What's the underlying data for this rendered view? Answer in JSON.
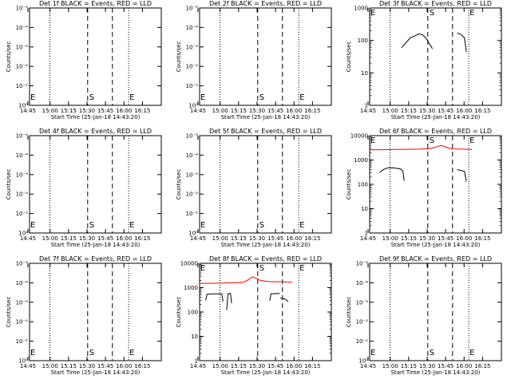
{
  "chart_data": {
    "type": "line",
    "common": {
      "xlabel": "Start Time (25-Jan-18 14:43:20)",
      "ylabel": "Counts/sec",
      "xticks": [
        "14:45",
        "15:00",
        "15:15",
        "15:30",
        "15:45",
        "16:00",
        "16:15"
      ],
      "xtick_min": [
        -1.33,
        16.67,
        31.67,
        46.67,
        61.67,
        76.67,
        91.67
      ],
      "xlim_min": [
        0,
        107
      ],
      "dotted_lines_min": [
        16.5,
        80.5
      ],
      "dashed_lines_min": [
        47.2,
        67.3
      ],
      "flags": [
        "S",
        "E"
      ],
      "series_colors": {
        "Events": "#000000",
        "LLD": "#ff0000"
      }
    },
    "panels": [
      {
        "title": "Det 1f BLACK = Events, RED = LLD",
        "yscale": "exp",
        "yticks": [
          "10⁰",
          "10⁻¹",
          "10⁻²",
          "10⁻³",
          "10⁻⁴",
          "10⁻⁵"
        ],
        "series": []
      },
      {
        "title": "Det 2f BLACK = Events, RED = LLD",
        "yscale": "exp",
        "yticks": [
          "10⁰",
          "10⁻¹",
          "10⁻²",
          "10⁻³",
          "10⁻⁴",
          "10⁻⁵"
        ],
        "series": []
      },
      {
        "title": "Det 3f BLACK = Events, RED = LLD",
        "yscale": "log",
        "ylim": [
          1,
          1000
        ],
        "yticks": [
          "1",
          "10",
          "100",
          "1000"
        ],
        "series": [
          {
            "color": "#000000",
            "segments": [
              [
                [
                  26,
                  60
                ],
                [
                  30,
                  90
                ],
                [
                  33,
                  120
                ],
                [
                  37,
                  140
                ],
                [
                  40,
                  160
                ],
                [
                  43,
                  148
                ],
                [
                  46,
                  115
                ],
                [
                  48,
                  85
                ],
                [
                  50,
                  65
                ],
                [
                  51,
                  55
                ]
              ],
              [
                [
                  71,
                  170
                ],
                [
                  74,
                  155
                ],
                [
                  77,
                  120
                ],
                [
                  78.5,
                  45
                ]
              ]
            ]
          }
        ]
      },
      {
        "title": "Det 4f BLACK = Events, RED = LLD",
        "yscale": "exp",
        "yticks": [
          "10⁰",
          "10⁻¹",
          "10⁻²",
          "10⁻³",
          "10⁻⁴",
          "10⁻⁵"
        ],
        "series": []
      },
      {
        "title": "Det 5f BLACK = Events, RED = LLD",
        "yscale": "exp",
        "yticks": [
          "10⁰",
          "10⁻¹",
          "10⁻²",
          "10⁻³",
          "10⁻⁴",
          "10⁻⁵"
        ],
        "series": []
      },
      {
        "title": "Det 6f BLACK = Events, RED = LLD",
        "yscale": "log",
        "ylim": [
          1,
          10000
        ],
        "yticks": [
          "1",
          "10",
          "100",
          "1000",
          "10000"
        ],
        "series": [
          {
            "color": "#ff0000",
            "segments": [
              [
                [
                  0,
                  2600
                ],
                [
                  10,
                  2650
                ],
                [
                  20,
                  2700
                ],
                [
                  30,
                  2750
                ],
                [
                  40,
                  2800
                ],
                [
                  48,
                  2900
                ],
                [
                  52,
                  3200
                ],
                [
                  56,
                  3700
                ],
                [
                  58,
                  4000
                ],
                [
                  61,
                  3500
                ],
                [
                  64,
                  3100
                ],
                [
                  68,
                  2850
                ],
                [
                  75,
                  2800
                ],
                [
                  80,
                  2750
                ],
                [
                  83,
                  2700
                ]
              ]
            ]
          },
          {
            "color": "#000000",
            "segments": [
              [
                [
                  8,
                  300
                ],
                [
                  11,
                  400
                ],
                [
                  15,
                  480
                ],
                [
                  20,
                  470
                ],
                [
                  25,
                  430
                ],
                [
                  27,
                  350
                ],
                [
                  28,
                  140
                ]
              ],
              [
                [
                  71,
                  400
                ],
                [
                  73,
                  380
                ],
                [
                  77,
                  340
                ],
                [
                  78.5,
                  130
                ]
              ]
            ]
          }
        ]
      },
      {
        "title": "Det 7f BLACK = Events, RED = LLD",
        "yscale": "exp",
        "yticks": [
          "10⁰",
          "10⁻¹",
          "10⁻²",
          "10⁻³",
          "10⁻⁴",
          "10⁻⁵"
        ],
        "series": []
      },
      {
        "title": "Det 8f BLACK = Events, RED = LLD",
        "yscale": "log",
        "ylim": [
          1,
          10000
        ],
        "yticks": [
          "1",
          "10",
          "100",
          "1000",
          "10000"
        ],
        "series": [
          {
            "color": "#ff0000",
            "segments": [
              [
                [
                  0,
                  1500
                ],
                [
                  10,
                  1520
                ],
                [
                  20,
                  1550
                ],
                [
                  28,
                  1580
                ],
                [
                  35,
                  1650
                ],
                [
                  38,
                  1900
                ],
                [
                  41,
                  2400
                ],
                [
                  43,
                  2800
                ],
                [
                  46,
                  2400
                ],
                [
                  49,
                  2000
                ],
                [
                  55,
                  1800
                ],
                [
                  62,
                  1750
                ],
                [
                  68,
                  1750
                ],
                [
                  72,
                  1700
                ],
                [
                  75,
                  1650
                ]
              ]
            ]
          },
          {
            "color": "#000000",
            "segments": [
              [
                [
                  5,
                  300
                ],
                [
                  6,
                  540
                ],
                [
                  12,
                  560
                ],
                [
                  18,
                  560
                ],
                [
                  19,
                  270
                ]
              ],
              [
                [
                  22,
                  120
                ],
                [
                  23,
                  560
                ],
                [
                  25,
                  580
                ],
                [
                  26,
                  230
                ]
              ],
              [
                [
                  57,
                  290
                ],
                [
                  58,
                  560
                ],
                [
                  64,
                  580
                ],
                [
                  65,
                  550
                ]
              ],
              [
                [
                  65.5,
                  380
                ],
                [
                  68,
                  350
                ],
                [
                  70,
                  330
                ],
                [
                  72,
                  260
                ]
              ]
            ]
          }
        ]
      },
      {
        "title": "Det 9f BLACK = Events, RED = LLD",
        "yscale": "exp",
        "yticks": [
          "10⁰",
          "10⁻¹",
          "10⁻²",
          "10⁻³",
          "10⁻⁴",
          "10⁻⁵"
        ],
        "series": []
      }
    ]
  }
}
